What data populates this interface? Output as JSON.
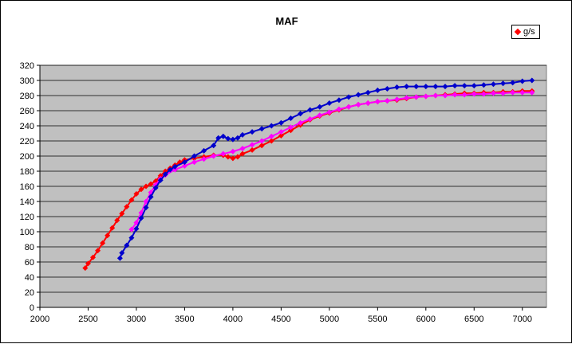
{
  "chart_data": {
    "type": "scatter",
    "title": "MAF",
    "xlabel": "",
    "ylabel": "",
    "xlim": [
      2000,
      7250
    ],
    "ylim": [
      0,
      320
    ],
    "xticks": [
      2000,
      2500,
      3000,
      3500,
      4000,
      4500,
      5000,
      5500,
      6000,
      6500,
      7000
    ],
    "yticks": [
      0,
      20,
      40,
      60,
      80,
      100,
      120,
      140,
      160,
      180,
      200,
      220,
      240,
      260,
      280,
      300,
      320
    ],
    "grid": true,
    "plot_background": "#C0C0C0",
    "legend": {
      "position": "top-right",
      "entries": [
        "g/s"
      ]
    },
    "series": [
      {
        "name": "g/s",
        "color": "#FF0000",
        "marker": "diamond",
        "x": [
          2470,
          2500,
          2550,
          2600,
          2650,
          2700,
          2750,
          2800,
          2850,
          2900,
          2950,
          3000,
          3050,
          3100,
          3150,
          3200,
          3250,
          3300,
          3350,
          3400,
          3450,
          3500,
          3600,
          3700,
          3800,
          3900,
          3950,
          4000,
          4050,
          4100,
          4200,
          4300,
          4400,
          4500,
          4600,
          4700,
          4800,
          4900,
          5000,
          5100,
          5200,
          5300,
          5400,
          5500,
          5600,
          5700,
          5800,
          5900,
          6000,
          6100,
          6200,
          6300,
          6400,
          6500,
          6600,
          6700,
          6800,
          6900,
          7000,
          7100
        ],
        "y": [
          52,
          58,
          66,
          75,
          85,
          95,
          105,
          115,
          124,
          133,
          142,
          150,
          156,
          160,
          163,
          167,
          174,
          180,
          184,
          188,
          192,
          195,
          197,
          199,
          201,
          201,
          199,
          197,
          199,
          203,
          208,
          214,
          220,
          227,
          234,
          241,
          248,
          253,
          257,
          261,
          265,
          268,
          270,
          272,
          273,
          274,
          276,
          278,
          279,
          280,
          281,
          282,
          283,
          283,
          284,
          284,
          285,
          285,
          286,
          286
        ]
      },
      {
        "name": "",
        "color": "#FF00FF",
        "marker": "diamond",
        "x": [
          2950,
          3000,
          3050,
          3100,
          3150,
          3200,
          3250,
          3300,
          3400,
          3500,
          3600,
          3700,
          3800,
          3900,
          4000,
          4100,
          4200,
          4300,
          4400,
          4500,
          4600,
          4700,
          4800,
          4900,
          5000,
          5100,
          5200,
          5300,
          5400,
          5500,
          5600,
          5700,
          5800,
          5900,
          6000,
          6100,
          6200,
          6300,
          6400,
          6500,
          6600,
          6700,
          6800,
          6900,
          7000,
          7100
        ],
        "y": [
          103,
          112,
          125,
          140,
          152,
          162,
          170,
          175,
          182,
          187,
          192,
          196,
          200,
          203,
          206,
          210,
          215,
          220,
          226,
          232,
          238,
          244,
          249,
          254,
          258,
          262,
          265,
          268,
          270,
          272,
          273,
          275,
          277,
          278,
          279,
          280,
          280,
          281,
          281,
          282,
          282,
          283,
          283,
          284,
          284,
          284
        ]
      },
      {
        "name": "",
        "color": "#0000CC",
        "marker": "diamond",
        "x": [
          2830,
          2850,
          2900,
          2950,
          3000,
          3050,
          3100,
          3150,
          3200,
          3250,
          3300,
          3350,
          3400,
          3500,
          3600,
          3700,
          3800,
          3850,
          3900,
          3950,
          4000,
          4050,
          4100,
          4200,
          4300,
          4400,
          4500,
          4600,
          4700,
          4800,
          4900,
          5000,
          5100,
          5200,
          5300,
          5400,
          5500,
          5600,
          5700,
          5800,
          5900,
          6000,
          6100,
          6200,
          6300,
          6400,
          6500,
          6600,
          6700,
          6800,
          6900,
          7000,
          7100
        ],
        "y": [
          65,
          72,
          82,
          92,
          104,
          118,
          132,
          146,
          158,
          168,
          176,
          182,
          186,
          192,
          200,
          207,
          214,
          224,
          226,
          223,
          222,
          224,
          228,
          232,
          236,
          240,
          244,
          250,
          256,
          261,
          265,
          270,
          274,
          278,
          281,
          284,
          287,
          289,
          291,
          292,
          292,
          292,
          292,
          292,
          293,
          293,
          293,
          294,
          295,
          296,
          297,
          299,
          300
        ]
      }
    ]
  }
}
